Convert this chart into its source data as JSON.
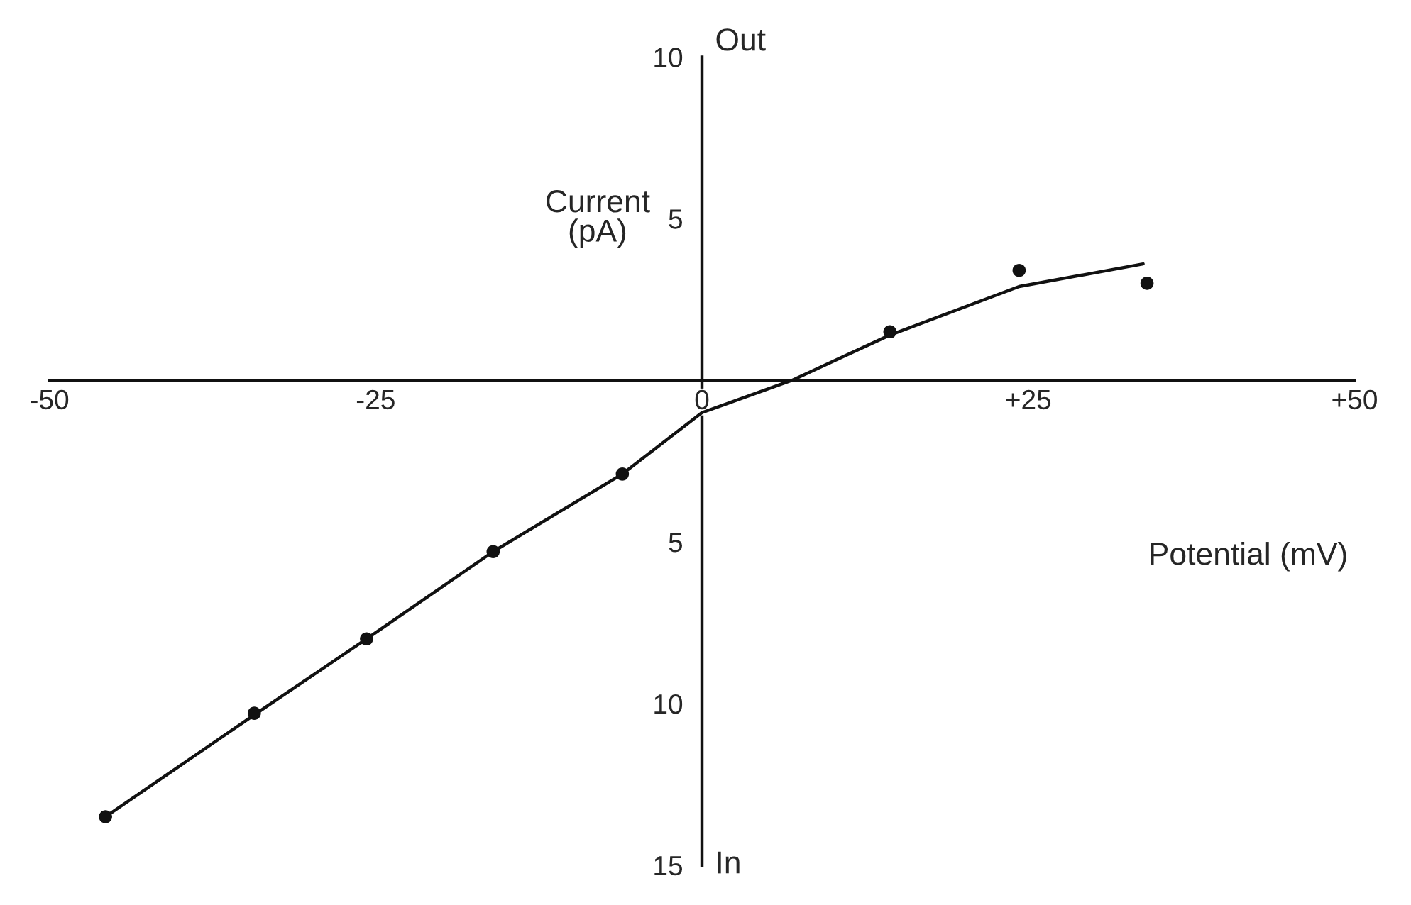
{
  "chart_data": {
    "type": "scatter",
    "xlabel": "Potential (mV)",
    "ylabel": "Current\n(pA)",
    "annotations": [
      "Out",
      "In"
    ],
    "series": [
      {
        "color": "#111111",
        "marker": "circle",
        "x": [
          -45.7,
          -34.3,
          -25.7,
          -16.0,
          -6.1,
          14.4,
          24.3,
          34.1
        ],
        "values": [
          -13.5,
          -10.3,
          -8.0,
          -5.3,
          -2.9,
          1.5,
          3.4,
          3.0
        ]
      },
      {
        "type": "line",
        "color": "#111111",
        "marker": "none",
        "line_style": "solid",
        "x": [
          -45.7,
          -34.3,
          -25.7,
          -16.0,
          -6.1,
          0,
          6.9,
          14.4,
          24.3,
          33.8
        ],
        "values": [
          -13.5,
          -10.35,
          -8.0,
          -5.3,
          -2.9,
          -1.0,
          0,
          1.4,
          2.9,
          3.6
        ]
      }
    ],
    "xlim": [
      -50,
      50
    ],
    "ylim": [
      -15,
      10
    ],
    "xticks": [
      {
        "value": -50,
        "label": "-50"
      },
      {
        "value": -25,
        "label": "-25"
      },
      {
        "value": 0,
        "label": "0"
      },
      {
        "value": 25,
        "label": "+25"
      },
      {
        "value": 50,
        "label": "+50"
      }
    ],
    "yticks": [
      {
        "value": -15,
        "label": "15"
      },
      {
        "value": -10,
        "label": "10"
      },
      {
        "value": -5,
        "label": "5"
      },
      {
        "value": 5,
        "label": "5"
      },
      {
        "value": 10,
        "label": "10"
      }
    ],
    "grid": false,
    "legend": false
  }
}
